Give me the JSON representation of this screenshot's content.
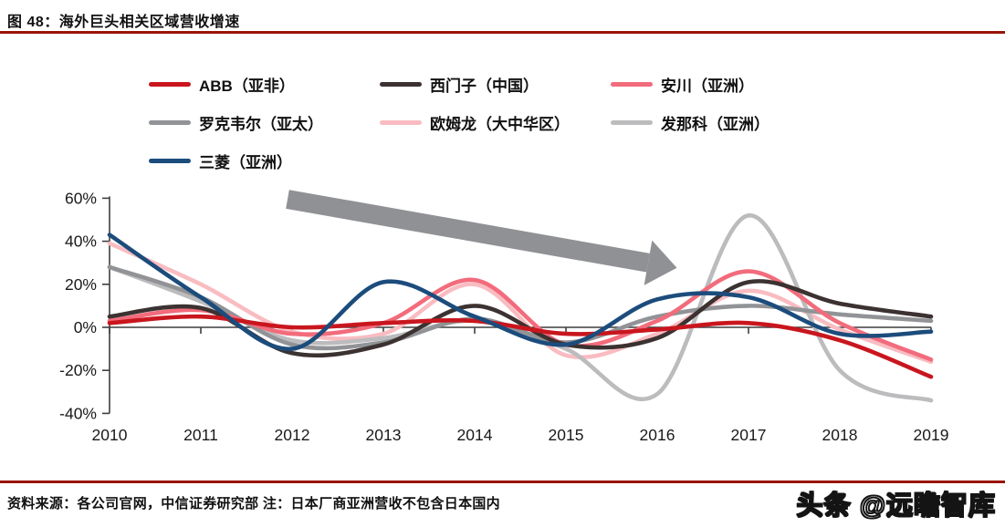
{
  "figure": {
    "title": "图 48：海外巨头相关区域营收增速"
  },
  "footer": {
    "source": "资料来源：各公司官网，中信证券研究部  注：日本厂商亚洲营收不包含日本国内",
    "watermark": "头条 @远瞻智库"
  },
  "colors": {
    "rule_red": "#991407",
    "axis": "#3f3f3f",
    "tick_text": "#1a1a1a",
    "arrow_gray": "#8f9194",
    "background": "#ffffff"
  },
  "chart_data": {
    "type": "line",
    "title": "海外巨头相关区域营收增速",
    "x": [
      2010,
      2011,
      2012,
      2013,
      2014,
      2015,
      2016,
      2017,
      2018,
      2019
    ],
    "series": [
      {
        "name": "ABB（亚非）",
        "color": "#C9161E",
        "values": [
          2,
          5,
          0,
          2,
          3,
          -3,
          -1,
          2,
          -6,
          -23
        ]
      },
      {
        "name": "西门子（中国）",
        "color": "#3B3231",
        "values": [
          5,
          9,
          -12,
          -8,
          10,
          -8,
          -5,
          21,
          11,
          5
        ]
      },
      {
        "name": "安川（亚洲）",
        "color": "#F26C7C",
        "values": [
          3,
          8,
          -3,
          2,
          22,
          -8,
          3,
          26,
          2,
          -15
        ]
      },
      {
        "name": "罗克韦尔（亚太）",
        "color": "#919396",
        "values": [
          28,
          14,
          -8,
          -7,
          4,
          -7,
          5,
          10,
          6,
          3
        ]
      },
      {
        "name": "欧姆龙（大中华区）",
        "color": "#F9BCC1",
        "values": [
          39,
          20,
          -2,
          -3,
          20,
          -13,
          -3,
          17,
          -1,
          -16
        ]
      },
      {
        "name": "发那科（亚洲）",
        "color": "#BCBCBE",
        "values": [
          28,
          12,
          -6,
          -5,
          3,
          -10,
          -31,
          52,
          -20,
          -34
        ]
      },
      {
        "name": "三菱（亚洲）",
        "color": "#1C4C7C",
        "values": [
          43,
          14,
          -10,
          21,
          5,
          -8,
          13,
          14,
          -3,
          -2
        ]
      }
    ],
    "y_ticks": {
      "labels": [
        "60%",
        "40%",
        "20%",
        "0%",
        "-20%",
        "-40%"
      ],
      "values": [
        60,
        40,
        20,
        0,
        -20,
        -40
      ]
    },
    "ylim": [
      -40,
      60
    ],
    "xlabel": "",
    "ylabel": "",
    "grid": false,
    "legend_position": "top",
    "annotation": {
      "kind": "downward-trend-arrow",
      "from": {
        "year": 2011.95,
        "value": 59.5
      },
      "to": {
        "year": 2015.9,
        "value": 30
      }
    }
  }
}
